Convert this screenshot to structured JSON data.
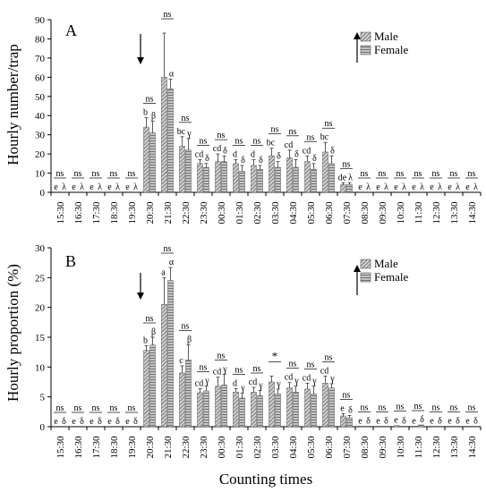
{
  "chart_data": [
    {
      "type": "bar",
      "panel": "A",
      "ylabel": "Hourly number/trap",
      "xlabel": "",
      "ylim": [
        0,
        90
      ],
      "yticks": [
        0,
        10,
        20,
        30,
        40,
        50,
        60,
        70,
        80,
        90
      ],
      "categories": [
        "15:30",
        "16:30",
        "17:30",
        "18:30",
        "19:30",
        "20:30",
        "21:30",
        "22:30",
        "23:30",
        "00:30",
        "01:30",
        "02:30",
        "03:30",
        "04:30",
        "05:30",
        "06:30",
        "07:30",
        "08:30",
        "09:30",
        "10:30",
        "11:30",
        "12:30",
        "13:30",
        "14:30"
      ],
      "legend": [
        "Male",
        "Female"
      ],
      "legend_position": "top-right",
      "arrow_down_at": "19:30",
      "arrow_up_at": "06:30",
      "series": [
        {
          "name": "Male",
          "values": [
            0,
            0,
            0,
            0,
            0,
            34,
            60,
            24,
            15,
            16,
            15,
            14,
            19,
            18,
            16,
            21,
            4,
            0,
            0,
            0,
            0,
            0,
            0,
            0
          ],
          "errors": [
            0,
            0,
            0,
            0,
            0,
            5,
            23,
            5,
            2,
            4,
            2,
            3,
            4,
            4,
            3,
            5,
            1,
            0,
            0,
            0,
            0,
            0,
            0,
            0
          ]
        },
        {
          "name": "Female",
          "values": [
            0,
            0,
            0,
            0,
            0,
            31,
            54,
            22,
            13,
            16,
            11,
            12,
            13,
            13,
            12,
            15,
            4,
            0,
            0,
            0,
            0,
            0,
            0,
            0
          ],
          "errors": [
            0,
            0,
            0,
            0,
            0,
            6,
            5,
            6,
            2,
            3,
            3,
            2,
            3,
            4,
            3,
            4,
            1,
            0,
            0,
            0,
            0,
            0,
            0,
            0
          ]
        }
      ],
      "male_letters": [
        "e",
        "e",
        "e",
        "e",
        "e",
        "b",
        "",
        "bc",
        "cd",
        "cd",
        "d",
        "d",
        "bc",
        "cd",
        "cd",
        "bc",
        "de",
        "e",
        "e",
        "e",
        "e",
        "e",
        "e",
        "e"
      ],
      "female_letters": [
        "λ",
        "λ",
        "λ",
        "λ",
        "λ",
        "β",
        "α",
        "γ",
        "δ",
        "δ",
        "δ",
        "δ",
        "δ",
        "δ",
        "δ",
        "δ",
        "λ",
        "λ",
        "λ",
        "λ",
        "λ",
        "λ",
        "λ",
        "λ"
      ],
      "comparison": [
        "ns",
        "ns",
        "ns",
        "ns",
        "ns",
        "ns",
        "ns",
        "ns",
        "ns",
        "ns",
        "ns",
        "ns",
        "ns",
        "ns",
        "ns",
        "ns",
        "ns",
        "ns",
        "ns",
        "ns",
        "ns",
        "ns",
        "ns",
        "ns"
      ]
    },
    {
      "type": "bar",
      "panel": "B",
      "ylabel": "Hourly proportion (%)",
      "xlabel": "Counting times",
      "ylim": [
        0,
        30
      ],
      "yticks": [
        0,
        5,
        10,
        15,
        20,
        25,
        30
      ],
      "categories": [
        "15:30",
        "16:30",
        "17:30",
        "18:30",
        "19:30",
        "20:30",
        "21:30",
        "22:30",
        "23:30",
        "00:30",
        "01:30",
        "02:30",
        "03:30",
        "04:30",
        "05:30",
        "06:30",
        "07:30",
        "08:30",
        "09:30",
        "10:30",
        "11:30",
        "12:30",
        "13:30",
        "14:30"
      ],
      "legend": [
        "Male",
        "Female"
      ],
      "legend_position": "top-right",
      "arrow_down_at": "19:30",
      "arrow_up_at": "06:30",
      "series": [
        {
          "name": "Male",
          "values": [
            0,
            0,
            0,
            0,
            0,
            12.8,
            20.5,
            9,
            5.7,
            6.8,
            5.8,
            5.8,
            7.5,
            6.5,
            6.3,
            7.3,
            1.8,
            0.1,
            0.1,
            0.2,
            0.1,
            0.1,
            0.1,
            0.1
          ],
          "errors": [
            0,
            0,
            0,
            0,
            0,
            0.8,
            4.5,
            1.2,
            0.7,
            1.5,
            0.6,
            0.8,
            1,
            0.9,
            1,
            1.2,
            0.4,
            0,
            0,
            0,
            0,
            0,
            0,
            0
          ]
        },
        {
          "name": "Female",
          "values": [
            0,
            0,
            0,
            0,
            0,
            13.7,
            24.5,
            11.2,
            6,
            7,
            4.8,
            5.2,
            5.5,
            5.8,
            5.5,
            6.5,
            1.5,
            0.1,
            0.1,
            0.1,
            0.3,
            0.1,
            0.1,
            0.1
          ],
          "errors": [
            0,
            0,
            0,
            0,
            0,
            1.3,
            2.2,
            2.5,
            0.8,
            1.8,
            0.8,
            0.9,
            0.8,
            1,
            1.3,
            0.7,
            0.4,
            0,
            0,
            0,
            0,
            0,
            0,
            0
          ]
        }
      ],
      "male_letters": [
        "e",
        "e",
        "e",
        "e",
        "e",
        "b",
        "a",
        "c",
        "cd",
        "cd",
        "d",
        "cd",
        "",
        "cd",
        "cd",
        "cd",
        "e",
        "e",
        "e",
        "e",
        "e",
        "e",
        "e",
        "e"
      ],
      "female_letters": [
        "δ",
        "δ",
        "δ",
        "δ",
        "δ",
        "β",
        "α",
        "β",
        "γ",
        "γ",
        "γ",
        "γ",
        "γ",
        "γ",
        "γ",
        "γ",
        "δ",
        "δ",
        "δ",
        "δ",
        "δ",
        "δ",
        "δ",
        "δ"
      ],
      "comparison": [
        "ns",
        "ns",
        "ns",
        "ns",
        "ns",
        "ns",
        "ns",
        "ns",
        "ns",
        "ns",
        "ns",
        "ns",
        "*",
        "ns",
        "ns",
        "ns",
        "ns",
        "ns",
        "ns",
        "ns",
        "ns",
        "ns",
        "ns",
        "ns"
      ]
    }
  ]
}
